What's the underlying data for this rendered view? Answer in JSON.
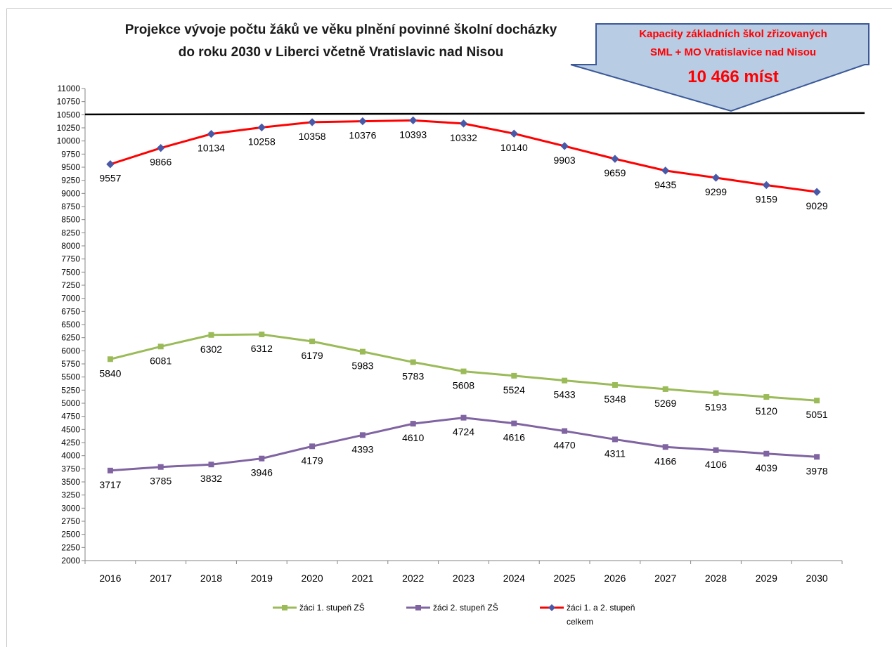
{
  "chart_data": {
    "type": "line",
    "title_lines": [
      "Projekce vývoje počtu žáků ve věku plnění povinné školní  docházky",
      "do roku 2030 v Liberci včetně Vratislavic nad Nisou"
    ],
    "categories": [
      "2016",
      "2017",
      "2018",
      "2019",
      "2020",
      "2021",
      "2022",
      "2023",
      "2024",
      "2025",
      "2026",
      "2027",
      "2028",
      "2029",
      "2030"
    ],
    "ylim": [
      2000,
      11000
    ],
    "y_ticks": [
      2000,
      2250,
      2500,
      2750,
      3000,
      3250,
      3500,
      3750,
      4000,
      4250,
      4500,
      4750,
      5000,
      5250,
      5500,
      5750,
      6000,
      6250,
      6500,
      6750,
      7000,
      7250,
      7500,
      7750,
      8000,
      8250,
      8500,
      8750,
      9000,
      9250,
      9500,
      9750,
      10000,
      10250,
      10500,
      10750,
      11000
    ],
    "grid": false,
    "legend_position": "bottom",
    "series": [
      {
        "name": "žáci 1. stupeň ZŠ",
        "color": "#9bbb59",
        "marker": "square",
        "values": [
          5840,
          6081,
          6302,
          6312,
          6179,
          5983,
          5783,
          5608,
          5524,
          5433,
          5348,
          5269,
          5193,
          5120,
          5051
        ]
      },
      {
        "name": "žáci 2. stupeň ZŠ",
        "color": "#8064a2",
        "marker": "square",
        "values": [
          3717,
          3785,
          3832,
          3946,
          4179,
          4393,
          4610,
          4724,
          4616,
          4470,
          4311,
          4166,
          4106,
          4039,
          3978
        ]
      },
      {
        "name_lines": [
          "žáci 1. a 2. stupeň",
          "celkem"
        ],
        "color": "#ff0000",
        "marker_color": "#4a58a8",
        "marker": "diamond",
        "values": [
          9557,
          9866,
          10134,
          10258,
          10358,
          10376,
          10393,
          10332,
          10140,
          9903,
          9659,
          9435,
          9299,
          9159,
          9029
        ]
      }
    ],
    "capacity": {
      "value": 10466,
      "line_color": "#000000",
      "callout_lines": [
        "Kapacity základních škol zřizovaných",
        "SML + MO Vratislavice nad Nisou",
        "10 466 míst"
      ],
      "callout_fill": "#b8cce4",
      "callout_stroke": "#3b5998",
      "callout_text_color": "#ff0000"
    }
  }
}
